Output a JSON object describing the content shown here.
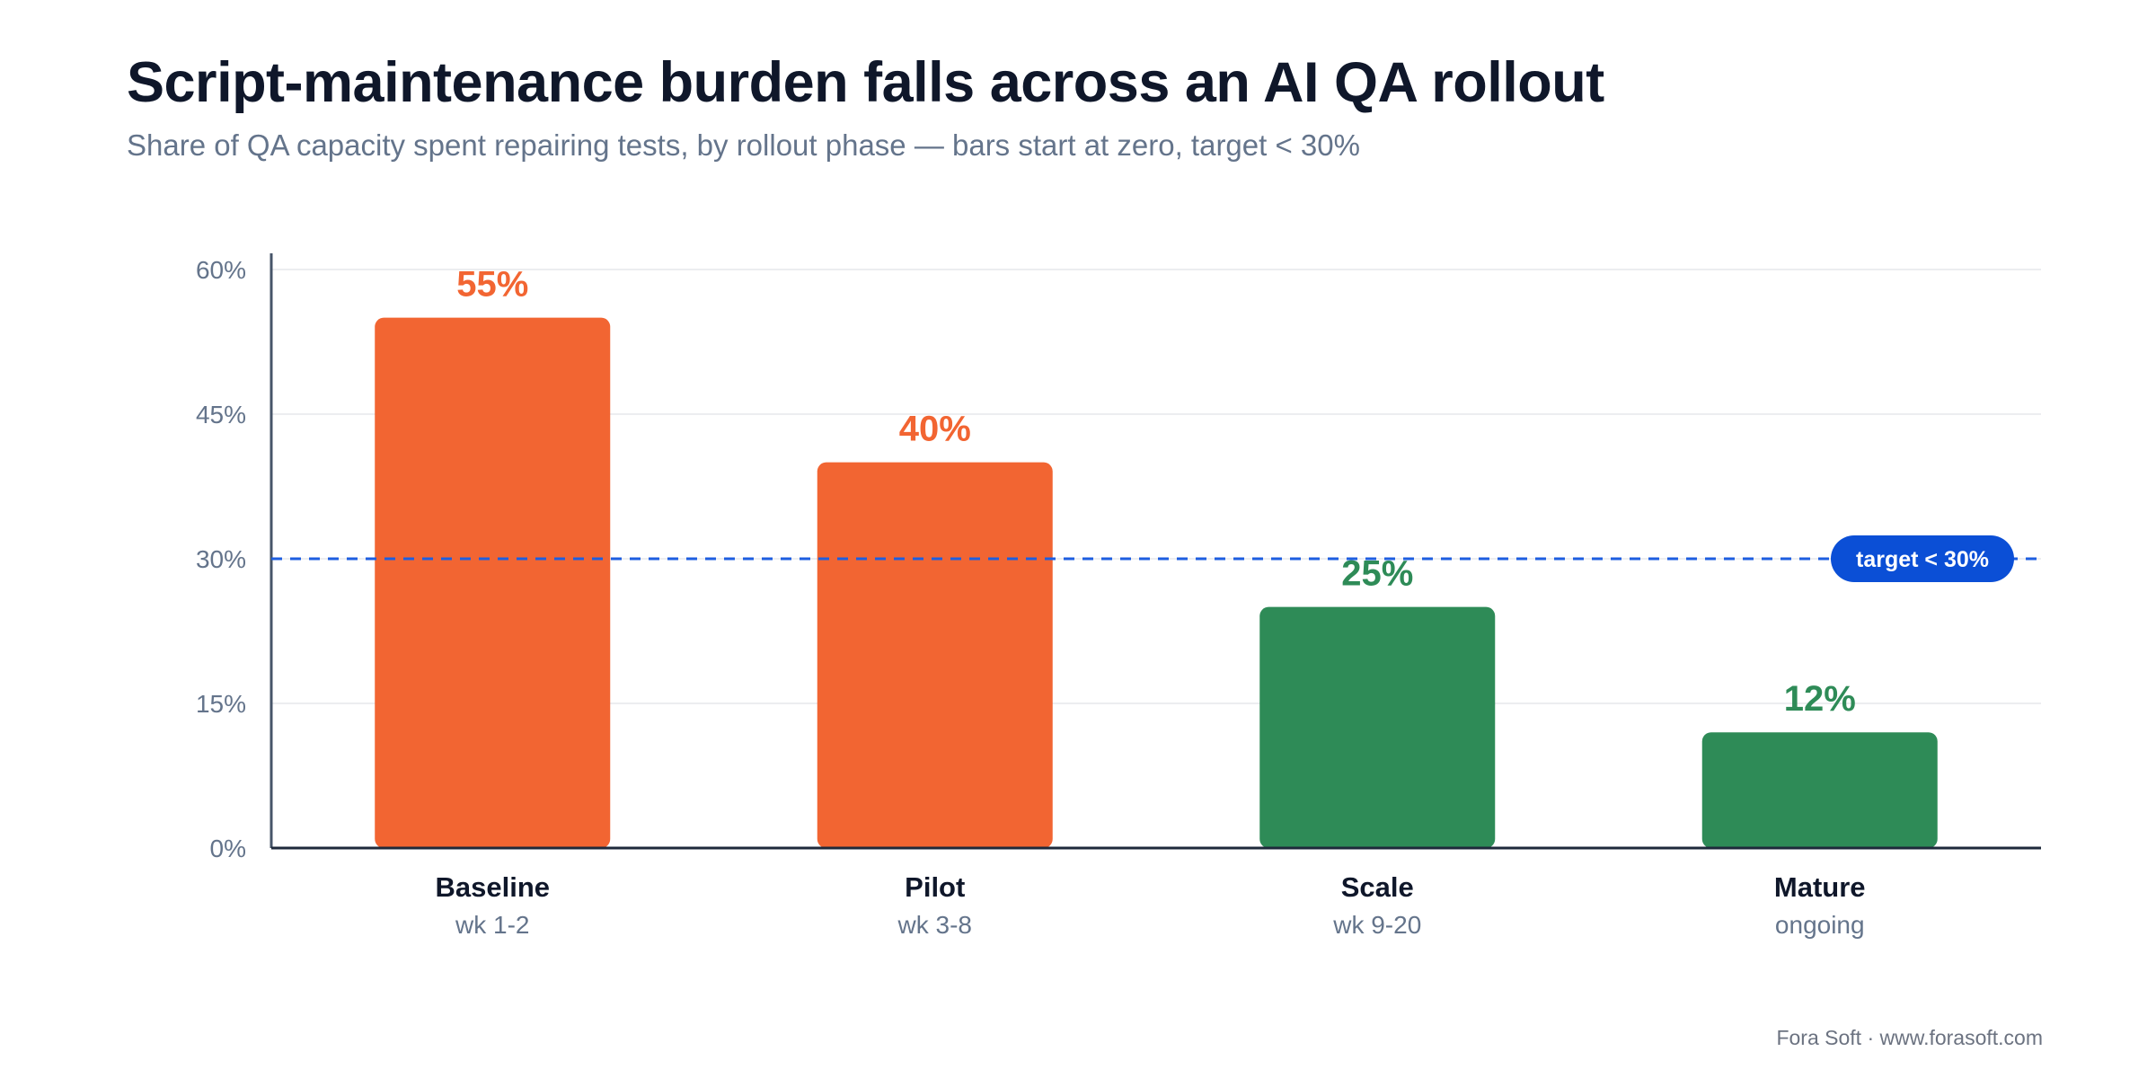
{
  "chart_data": {
    "type": "bar",
    "title": "Script-maintenance burden falls across an AI QA rollout",
    "subtitle": "Share of QA capacity spent repairing tests, by rollout phase — bars start at zero, target < 30%",
    "categories": [
      "Baseline",
      "Pilot",
      "Scale",
      "Mature"
    ],
    "sublabels": [
      "wk 1-2",
      "wk 3-8",
      "wk 9-20",
      "ongoing"
    ],
    "values": [
      55,
      40,
      25,
      12
    ],
    "value_labels": [
      "55%",
      "40%",
      "25%",
      "12%"
    ],
    "bar_colors": [
      "#f26532",
      "#f26532",
      "#2e8b57",
      "#2e8b57"
    ],
    "ylim": [
      0,
      60
    ],
    "yticks": [
      0,
      15,
      30,
      45,
      60
    ],
    "ytick_labels": [
      "0%",
      "15%",
      "30%",
      "45%",
      "60%"
    ],
    "grid": true,
    "xlabel": "",
    "ylabel": "",
    "target": {
      "value": 30,
      "label": "target < 30%",
      "color": "#1d5ee0",
      "badge_color": "#0b4fd6"
    }
  },
  "footer": "Fora Soft · www.forasoft.com"
}
